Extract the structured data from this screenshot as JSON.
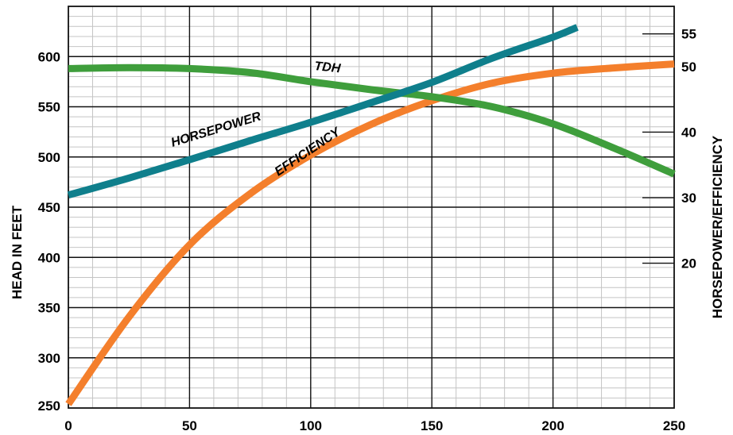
{
  "chart_data": {
    "type": "line",
    "title": "",
    "xlabel": "",
    "ylabel": "HEAD IN FEET",
    "y2label": "HORSEPOWER/EFFICIENCY",
    "xlim": [
      0,
      250
    ],
    "ylim": [
      250,
      650
    ],
    "y2lim": [
      -2.1,
      59.2
    ],
    "grid": true,
    "x_ticks": [
      "0",
      "50",
      "100",
      "150",
      "200",
      "250"
    ],
    "y_ticks": [
      "250",
      "300",
      "350",
      "400",
      "450",
      "500",
      "550",
      "600"
    ],
    "y2_ticks": [
      "20",
      "30",
      "40",
      "50",
      "55"
    ],
    "series": [
      {
        "name": "TDH",
        "axis": "left",
        "color": "#3f9e3c",
        "x": [
          0,
          25,
          50,
          75,
          100,
          125,
          150,
          175,
          200,
          225,
          250
        ],
        "y": [
          588,
          589,
          588,
          584,
          575,
          567,
          560,
          550,
          533,
          509,
          483
        ]
      },
      {
        "name": "HORSEPOWER",
        "axis": "right",
        "color": "#0f7f8c",
        "x": [
          0,
          25,
          50,
          75,
          100,
          125,
          150,
          175,
          200,
          210
        ],
        "y": [
          30.4,
          33.0,
          35.8,
          38.7,
          41.5,
          44.5,
          47.6,
          51.3,
          54.5,
          56.0
        ]
      },
      {
        "name": "EFFICIENCY",
        "axis": "right",
        "color": "#f47f2c",
        "x": [
          0,
          25,
          50,
          75,
          100,
          125,
          150,
          175,
          200,
          225,
          250
        ],
        "y": [
          -1.5,
          11.8,
          22.8,
          30.6,
          36.5,
          41.2,
          44.8,
          47.5,
          49.0,
          49.8,
          50.4
        ]
      }
    ],
    "annotations": [
      "TDH",
      "HORSEPOWER",
      "EFFICIENCY"
    ]
  }
}
